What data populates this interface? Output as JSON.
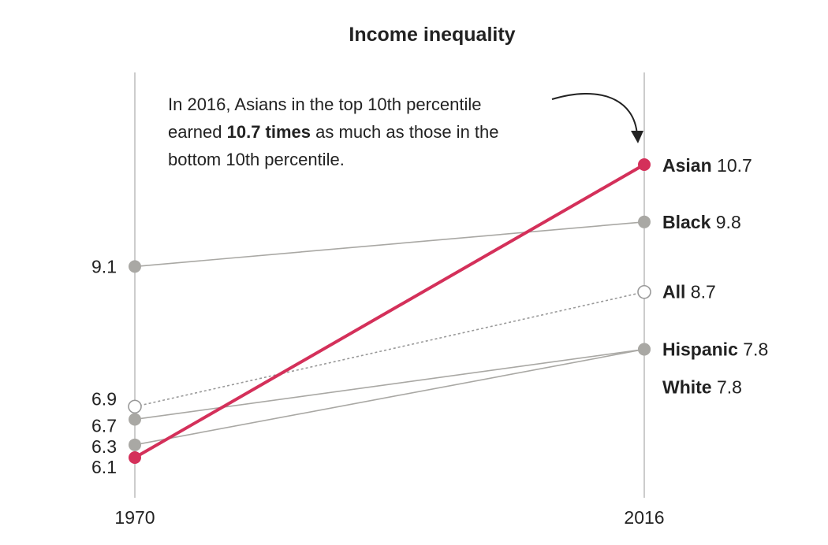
{
  "chart_data": {
    "type": "line",
    "title": "Income inequality",
    "x": [
      "1970",
      "2016"
    ],
    "ylim": [
      6.1,
      10.7
    ],
    "highlight_color": "#d4305a",
    "other_color": "#a9a8a4",
    "series": [
      {
        "name": "Asian",
        "values": [
          6.1,
          10.7
        ],
        "style": "highlight",
        "start_label": "6.1",
        "end_label": "10.7"
      },
      {
        "name": "Black",
        "values": [
          9.1,
          9.8
        ],
        "style": "gray",
        "start_label": "9.1",
        "end_label": "9.8"
      },
      {
        "name": "All",
        "values": [
          6.9,
          8.7
        ],
        "style": "dotted",
        "start_label": "6.9",
        "end_label": "8.7"
      },
      {
        "name": "Hispanic",
        "values": [
          6.7,
          7.8
        ],
        "style": "gray",
        "start_label": "6.7",
        "end_label": "7.8"
      },
      {
        "name": "White",
        "values": [
          6.3,
          7.8
        ],
        "style": "gray",
        "start_label": "6.3",
        "end_label": "7.8"
      }
    ],
    "annotation": {
      "line1": "In 2016, Asians in the top 10th percentile",
      "line2_pre": "earned ",
      "line2_bold": "10.7 times",
      "line2_post": " as much as those in the",
      "line3": "bottom 10th percentile."
    }
  }
}
